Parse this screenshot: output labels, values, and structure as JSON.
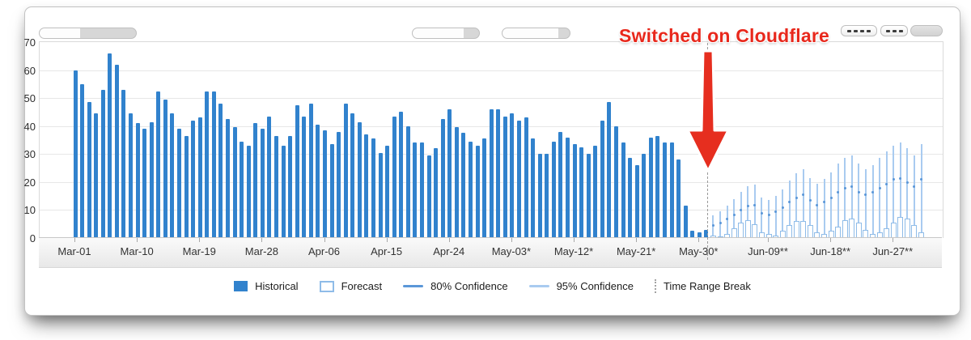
{
  "annotation": {
    "text": "Switched on Cloudflare",
    "color": "#e8281c"
  },
  "legend": [
    {
      "label": "Historical",
      "swatch": "filled-square",
      "color": "#3182cd"
    },
    {
      "label": "Forecast",
      "swatch": "outlined-square",
      "color": "#8fbce8"
    },
    {
      "label": "80% Confidence",
      "swatch": "line",
      "color": "#5b97d8"
    },
    {
      "label": "95% Confidence",
      "swatch": "line",
      "color": "#a9cbf0"
    },
    {
      "label": "Time Range Break",
      "swatch": "dashed-vertical",
      "color": "#a3a3a3"
    }
  ],
  "chart_data": {
    "type": "bar",
    "title": "",
    "xlabel": "",
    "ylabel": "",
    "ylim": [
      0,
      70
    ],
    "grid": true,
    "legend_position": "bottom",
    "y_ticks": [
      0,
      10,
      20,
      30,
      40,
      50,
      60,
      70
    ],
    "x_tick_labels": [
      "Mar-01",
      "Mar-10",
      "Mar-19",
      "Mar-28",
      "Apr-06",
      "Apr-15",
      "Apr-24",
      "May-03*",
      "May-12*",
      "May-21*",
      "May-30*",
      "Jun-09**",
      "Jun-18**",
      "Jun-27**"
    ],
    "x_tick_days": [
      0,
      9,
      18,
      27,
      36,
      45,
      54,
      63,
      72,
      81,
      90,
      100,
      109,
      118
    ],
    "time_range_break_day": 91.3,
    "series": [
      {
        "name": "Historical",
        "start_day": 0,
        "values": [
          60,
          55,
          48.5,
          44.5,
          53,
          66,
          62,
          53,
          44.5,
          41,
          39,
          41.5,
          52.5,
          49.5,
          44.5,
          39,
          36.5,
          42,
          43,
          52.5,
          52.5,
          48,
          42.5,
          39.5,
          34.5,
          33,
          41,
          39,
          43.5,
          36.5,
          33,
          36.5,
          47.5,
          43.5,
          48,
          40.5,
          38.5,
          33.5,
          38,
          48,
          44.5,
          41.5,
          37,
          35.5,
          30.5,
          33,
          43.5,
          45,
          40,
          34,
          34,
          29.5,
          32,
          42.5,
          46,
          39.5,
          37.5,
          34.5,
          33,
          35.5,
          46,
          46,
          43.5,
          44.5,
          42,
          43,
          35.5,
          30,
          30,
          34.5,
          38,
          36,
          33.5,
          32.5,
          30,
          33,
          42,
          48.5,
          40,
          34,
          28.5,
          26,
          30,
          36,
          36.5,
          34,
          34,
          28,
          11.5,
          2.5,
          2,
          3
        ]
      },
      {
        "name": "Forecast",
        "start_day": 92,
        "values": [
          1,
          0.5,
          1.5,
          3.5,
          5.5,
          6.5,
          5,
          2,
          1.5,
          1,
          2.5,
          4.5,
          6,
          6,
          4.5,
          2,
          1.5,
          2.5,
          4,
          6.5,
          7,
          5.5,
          3,
          1.5,
          2,
          3.5,
          5.5,
          7.5,
          7,
          4.5,
          2
        ]
      },
      {
        "name": "80% Confidence",
        "start_day": 92,
        "values": [
          4.5,
          5.5,
          7,
          8.5,
          10,
          11.5,
          12,
          9,
          8.5,
          9.5,
          11,
          13,
          14.5,
          15.5,
          13.5,
          12,
          13,
          14.5,
          16.5,
          18,
          18.5,
          16.5,
          15.5,
          16.5,
          18,
          19.5,
          21,
          21.5,
          20,
          18.5,
          21
        ]
      },
      {
        "name": "95% Confidence",
        "start_day": 92,
        "values": [
          8,
          9.5,
          11.5,
          14,
          16.5,
          18.5,
          19,
          14.5,
          13.5,
          15,
          17.5,
          20.5,
          23,
          24.5,
          21.5,
          19.5,
          21,
          23.5,
          26.5,
          28.5,
          29.5,
          26.5,
          24.5,
          26,
          28.5,
          31,
          33,
          34,
          32,
          29.5,
          33.5
        ]
      }
    ]
  }
}
